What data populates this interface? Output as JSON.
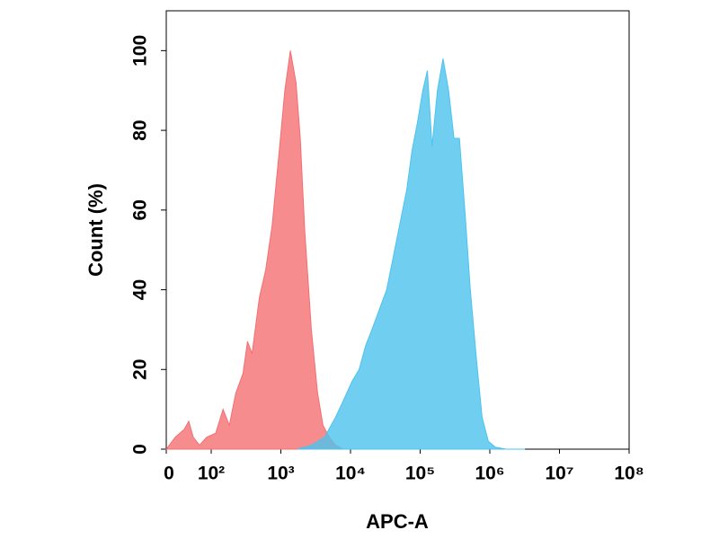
{
  "chart_data": {
    "type": "area",
    "xlabel": "APC-A",
    "ylabel": "Count  (%)",
    "xscale": "symlog",
    "linthresh": 100,
    "xlim": [
      0,
      100000000
    ],
    "ylim": [
      0,
      110
    ],
    "xticks": [
      0,
      {
        "value": 100,
        "label": "10²"
      },
      {
        "value": 1000,
        "label": "10³"
      },
      {
        "value": 10000,
        "label": "10⁴"
      },
      {
        "value": 100000,
        "label": "10⁵"
      },
      {
        "value": 1000000,
        "label": "10⁶"
      },
      {
        "value": 10000000,
        "label": "10⁷"
      },
      {
        "value": 100000000,
        "label": "10⁸"
      }
    ],
    "yticks": [
      0,
      20,
      40,
      60,
      80,
      100
    ],
    "grid": false,
    "series": [
      {
        "color": "#f46f72",
        "x": [
          0,
          20,
          40,
          50,
          60,
          74,
          90,
          116,
          148,
          182,
          225,
          286,
          332,
          386,
          491,
          606,
          748,
          950,
          1140,
          1370,
          1650,
          1900,
          2200,
          2740,
          3370,
          4020,
          4960,
          6100,
          7800
        ],
        "values": [
          0,
          3,
          5,
          7,
          3,
          1,
          3,
          4,
          10,
          6,
          14,
          19,
          27,
          24,
          38,
          45,
          56,
          75,
          90,
          100,
          92,
          78,
          55,
          30,
          14,
          6,
          3,
          1,
          0
        ]
      },
      {
        "color": "#4cc3ee",
        "x": [
          1740,
          2740,
          4230,
          6100,
          7800,
          10500,
          13300,
          16500,
          20300,
          25900,
          33000,
          40800,
          50400,
          64000,
          76500,
          91500,
          109000,
          127000,
          148000,
          177000,
          213000,
          256000,
          306000,
          366000,
          438000,
          525000,
          647000,
          775000,
          950000,
          1200000,
          1700000,
          3200000
        ],
        "values": [
          0,
          1,
          3,
          8,
          12,
          17,
          20,
          26,
          30,
          35,
          40,
          48,
          56,
          65,
          75,
          82,
          90,
          95,
          76,
          90,
          98,
          90,
          78,
          78,
          60,
          40,
          22,
          8,
          2,
          0.5,
          0,
          0
        ]
      }
    ]
  }
}
